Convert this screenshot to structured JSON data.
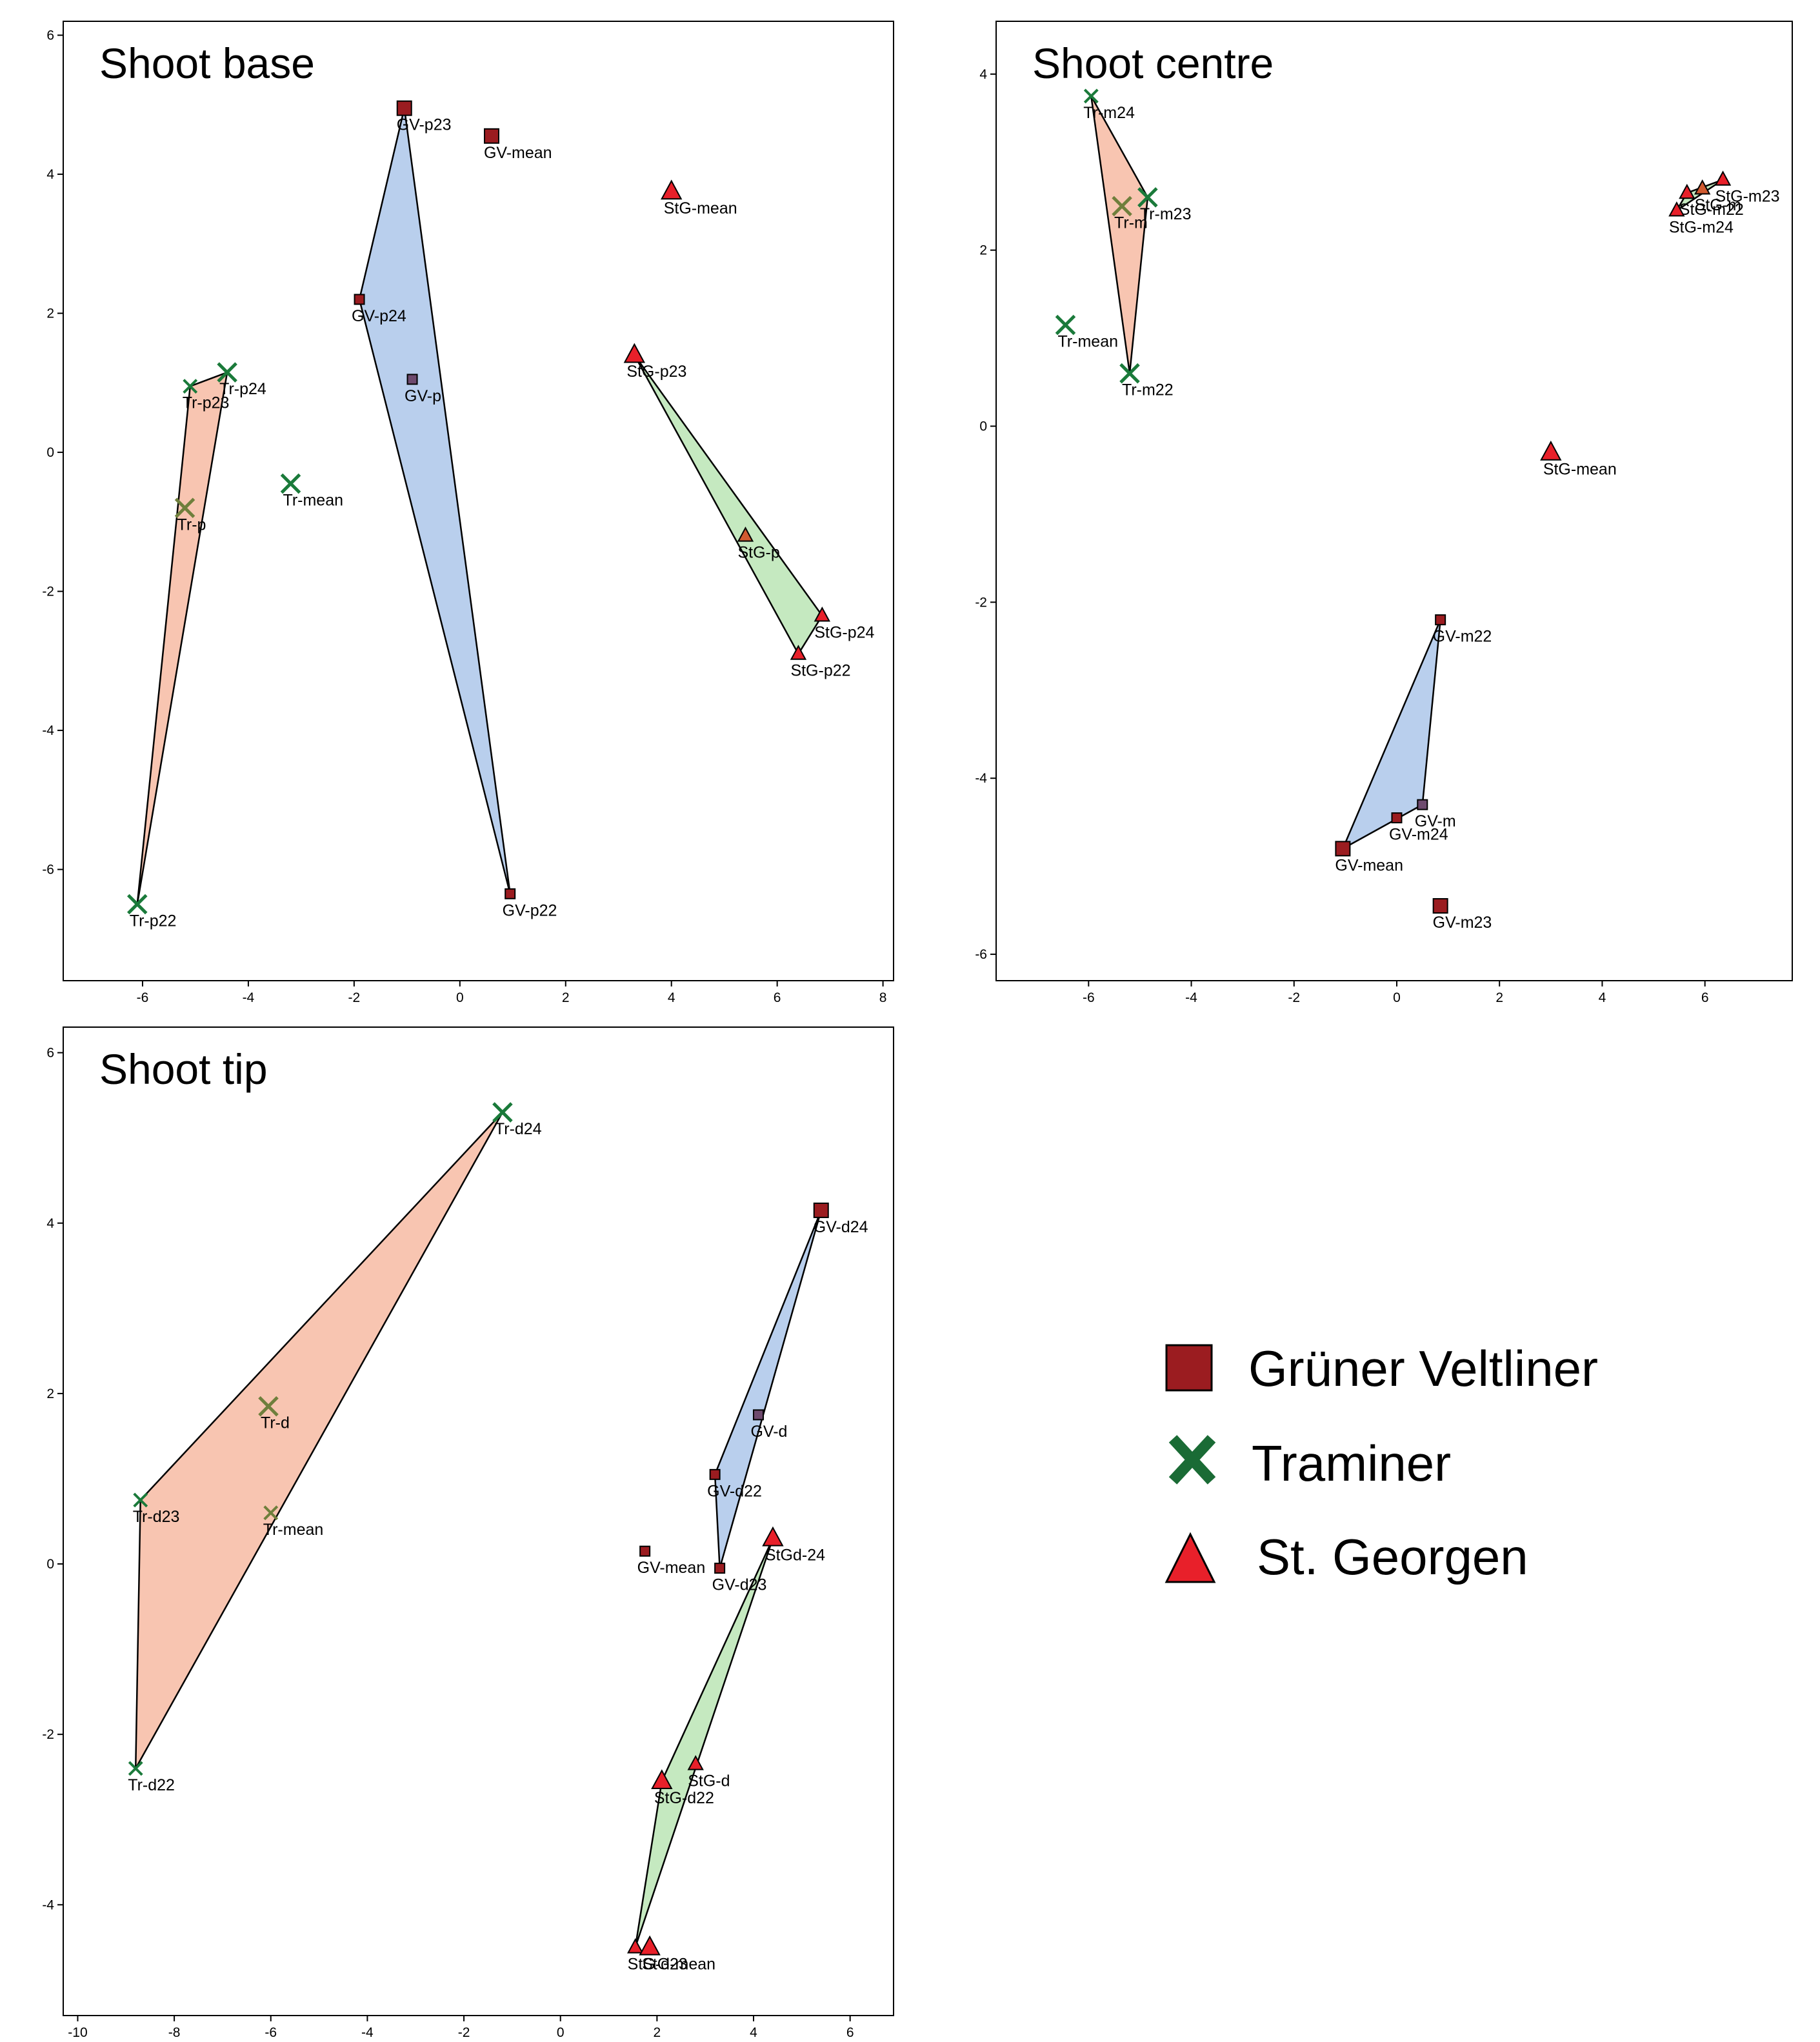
{
  "colors": {
    "gv_marker": "#9b1c20",
    "tr_marker": "#1a7a3a",
    "stg_marker": "#e8202a",
    "gv_hull": "#a8c3e8",
    "tr_hull": "#f6b69d",
    "stg_hull": "#b6e3b0",
    "axis": "#000000"
  },
  "legend": {
    "items": [
      {
        "label": "Grüner Veltliner",
        "marker": "square",
        "color": "#9b1c20"
      },
      {
        "label": "Traminer",
        "marker": "x",
        "color": "#1a6b35"
      },
      {
        "label": "St. Georgen",
        "marker": "triangle",
        "color": "#e8202a"
      }
    ]
  },
  "chart_data": [
    {
      "type": "scatter",
      "title": "Shoot base",
      "xlim": [
        -7.5,
        8.2
      ],
      "ylim": [
        -7.6,
        6.2
      ],
      "xticks": [
        -6,
        -4,
        -2,
        0,
        2,
        4,
        6,
        8
      ],
      "yticks": [
        -6,
        -4,
        -2,
        0,
        2,
        4,
        6
      ],
      "points": [
        {
          "label": "GV-p23",
          "x": -1.05,
          "y": 4.95,
          "group": "GV",
          "size": "large"
        },
        {
          "label": "GV-mean",
          "x": 0.6,
          "y": 4.55,
          "group": "GV",
          "size": "large"
        },
        {
          "label": "GV-p24",
          "x": -1.9,
          "y": 2.2,
          "group": "GV",
          "size": "small"
        },
        {
          "label": "GV-p",
          "x": -0.9,
          "y": 1.05,
          "group": "GV",
          "size": "small",
          "style": "centroid"
        },
        {
          "label": "GV-p22",
          "x": 0.95,
          "y": -6.35,
          "group": "GV",
          "size": "small"
        },
        {
          "label": "Tr-p24",
          "x": -4.4,
          "y": 1.15,
          "group": "Tr",
          "size": "large"
        },
        {
          "label": "Tr-p23",
          "x": -5.1,
          "y": 0.95,
          "group": "Tr",
          "size": "small"
        },
        {
          "label": "Tr-p",
          "x": -5.2,
          "y": -0.8,
          "group": "Tr",
          "size": "large",
          "style": "centroid"
        },
        {
          "label": "Tr-mean",
          "x": -3.2,
          "y": -0.45,
          "group": "Tr",
          "size": "large"
        },
        {
          "label": "Tr-p22",
          "x": -6.1,
          "y": -6.5,
          "group": "Tr",
          "size": "large"
        },
        {
          "label": "StG-mean",
          "x": 4.0,
          "y": 3.75,
          "group": "StG",
          "size": "large"
        },
        {
          "label": "StG-p23",
          "x": 3.3,
          "y": 1.4,
          "group": "StG",
          "size": "large"
        },
        {
          "label": "StG-p",
          "x": 5.4,
          "y": -1.2,
          "group": "StG",
          "size": "small",
          "style": "centroid"
        },
        {
          "label": "StG-p24",
          "x": 6.85,
          "y": -2.35,
          "group": "StG",
          "size": "small"
        },
        {
          "label": "StG-p22",
          "x": 6.4,
          "y": -2.9,
          "group": "StG",
          "size": "small"
        }
      ],
      "hulls": [
        {
          "group": "GV",
          "points": [
            "GV-p23",
            "GV-p24",
            "GV-p22"
          ]
        },
        {
          "group": "Tr",
          "points": [
            "Tr-p23",
            "Tr-p24",
            "Tr-p22"
          ]
        },
        {
          "group": "StG",
          "points": [
            "StG-p23",
            "StG-p24",
            "StG-p22"
          ]
        }
      ]
    },
    {
      "type": "scatter",
      "title": "Shoot centre",
      "xlim": [
        -7.8,
        7.7
      ],
      "ylim": [
        -6.3,
        4.6
      ],
      "xticks": [
        -6,
        -4,
        -2,
        0,
        2,
        4,
        6
      ],
      "yticks": [
        -6,
        -4,
        -2,
        0,
        2,
        4
      ],
      "points": [
        {
          "label": "Tr-m24",
          "x": -5.95,
          "y": 3.75,
          "group": "Tr",
          "size": "small"
        },
        {
          "label": "Tr-m",
          "x": -5.35,
          "y": 2.5,
          "group": "Tr",
          "size": "large",
          "style": "centroid"
        },
        {
          "label": "Tr-m23",
          "x": -4.85,
          "y": 2.6,
          "group": "Tr",
          "size": "large"
        },
        {
          "label": "Tr-mean",
          "x": -6.45,
          "y": 1.15,
          "group": "Tr",
          "size": "large"
        },
        {
          "label": "Tr-m22",
          "x": -5.2,
          "y": 0.6,
          "group": "Tr",
          "size": "large"
        },
        {
          "label": "StG-m23",
          "x": 6.35,
          "y": 2.8,
          "group": "StG",
          "size": "small"
        },
        {
          "label": "StG-m",
          "x": 5.95,
          "y": 2.7,
          "group": "StG",
          "size": "small",
          "style": "centroid"
        },
        {
          "label": "StG-m22",
          "x": 5.65,
          "y": 2.65,
          "group": "StG",
          "size": "small"
        },
        {
          "label": "StG-m24",
          "x": 5.45,
          "y": 2.45,
          "group": "StG",
          "size": "small"
        },
        {
          "label": "StG-mean",
          "x": 3.0,
          "y": -0.3,
          "group": "StG",
          "size": "large"
        },
        {
          "label": "GV-m22",
          "x": 0.85,
          "y": -2.2,
          "group": "GV",
          "size": "small"
        },
        {
          "label": "GV-m",
          "x": 0.5,
          "y": -4.3,
          "group": "GV",
          "size": "small",
          "style": "centroid"
        },
        {
          "label": "GV-m24",
          "x": 0.0,
          "y": -4.45,
          "group": "GV",
          "size": "small"
        },
        {
          "label": "GV-mean",
          "x": -1.05,
          "y": -4.8,
          "group": "GV",
          "size": "large"
        },
        {
          "label": "GV-m23",
          "x": 0.85,
          "y": -5.45,
          "group": "GV",
          "size": "large"
        }
      ],
      "hulls": [
        {
          "group": "Tr",
          "points": [
            "Tr-m24",
            "Tr-m23",
            "Tr-m22"
          ]
        },
        {
          "group": "StG",
          "points": [
            "StG-m23",
            "StG-m22",
            "StG-m24"
          ]
        },
        {
          "group": "GV",
          "points": [
            "GV-m22",
            "GV-m",
            "GV-mean"
          ]
        }
      ]
    },
    {
      "type": "scatter",
      "title": "Shoot tip",
      "xlim": [
        -10.3,
        6.9
      ],
      "ylim": [
        -5.3,
        6.3
      ],
      "xticks": [
        -10,
        -8,
        -6,
        -4,
        -2,
        0,
        2,
        4,
        6
      ],
      "yticks": [
        -4,
        -2,
        0,
        2,
        4,
        6
      ],
      "points": [
        {
          "label": "Tr-d24",
          "x": -1.2,
          "y": 5.3,
          "group": "Tr",
          "size": "large"
        },
        {
          "label": "Tr-d",
          "x": -6.05,
          "y": 1.85,
          "group": "Tr",
          "size": "large",
          "style": "centroid"
        },
        {
          "label": "Tr-d23",
          "x": -8.7,
          "y": 0.75,
          "group": "Tr",
          "size": "small"
        },
        {
          "label": "Tr-mean",
          "x": -6.0,
          "y": 0.6,
          "group": "Tr",
          "size": "small",
          "style": "centroid"
        },
        {
          "label": "Tr-d22",
          "x": -8.8,
          "y": -2.4,
          "group": "Tr",
          "size": "small"
        },
        {
          "label": "GV-d24",
          "x": 5.4,
          "y": 4.15,
          "group": "GV",
          "size": "large"
        },
        {
          "label": "GV-d",
          "x": 4.1,
          "y": 1.75,
          "group": "GV",
          "size": "small",
          "style": "centroid"
        },
        {
          "label": "GV-d22",
          "x": 3.2,
          "y": 1.05,
          "group": "GV",
          "size": "small"
        },
        {
          "label": "GV-mean",
          "x": 1.75,
          "y": 0.15,
          "group": "GV",
          "size": "small"
        },
        {
          "label": "GV-d23",
          "x": 3.3,
          "y": -0.05,
          "group": "GV",
          "size": "small"
        },
        {
          "label": "StGd-24",
          "x": 4.4,
          "y": 0.3,
          "group": "StG",
          "size": "large"
        },
        {
          "label": "StG-d",
          "x": 2.8,
          "y": -2.35,
          "group": "StG",
          "size": "small"
        },
        {
          "label": "StG-d22",
          "x": 2.1,
          "y": -2.55,
          "group": "StG",
          "size": "large"
        },
        {
          "label": "StG-d23",
          "x": 1.55,
          "y": -4.5,
          "group": "StG",
          "size": "small"
        },
        {
          "label": "StG-mean",
          "x": 1.85,
          "y": -4.5,
          "group": "StG",
          "size": "large"
        }
      ],
      "hulls": [
        {
          "group": "Tr",
          "points": [
            "Tr-d24",
            "Tr-d23",
            "Tr-d22"
          ]
        },
        {
          "group": "GV",
          "points": [
            "GV-d24",
            "GV-d22",
            "GV-d23"
          ]
        },
        {
          "group": "StG",
          "points": [
            "StGd-24",
            "StG-d22",
            "StG-d23"
          ]
        }
      ]
    }
  ]
}
